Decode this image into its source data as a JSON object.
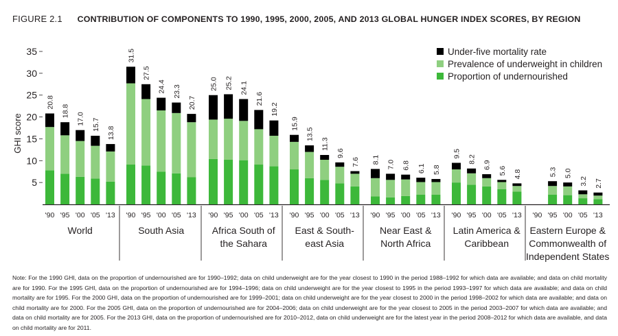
{
  "figure": {
    "label": "FIGURE 2.1",
    "title": "CONTRIBUTION OF COMPONENTS TO 1990, 1995, 2000, 2005, AND 2013 GLOBAL HUNGER INDEX SCORES, BY REGION"
  },
  "note": "Note: For the 1990 GHI, data on the proportion of undernourished are for 1990–1992; data on child underweight are for the year closest to 1990 in the period 1988–1992 for which data are available; and data on child mortality are for 1990. For the 1995 GHI, data on the proportion of undernourished are for 1994–1996; data on child underweight are for the year closest to 1995 in the period 1993–1997 for which data are available; and data on child mortality are for 1995. For the 2000 GHI, data on the proportion of undernourished are for 1999–2001; data on child underweight are for the year closest to 2000 in the period 1998–2002 for which data are available; and data on child mortality are for 2000. For the 2005 GHI, data on the proportion of undernourished are for 2004–2006; data on child underweight are for the year closest to 2005 in the period 2003–2007 for which data are available; and data on child mortality are for 2005. For the 2013 GHI, data on the proportion of undernourished are for 2010–2012, data on child underweight are for the latest year in the period 2008–2012 for which data are available, and data on child mortality are for 2011.",
  "chart_data": {
    "type": "bar",
    "stacked": true,
    "ylabel": "GHI score",
    "ylim": [
      0,
      35
    ],
    "yticks": [
      5,
      10,
      15,
      20,
      25,
      30,
      35
    ],
    "grid": false,
    "legend_position": "top-right",
    "year_labels": [
      "'90",
      "'95",
      "'00",
      "'05",
      "'13"
    ],
    "series": [
      {
        "name": "Under-five mortality rate",
        "color": "#000000"
      },
      {
        "name": "Prevalence of underweight in children",
        "color": "#8fcf80"
      },
      {
        "name": "Proportion of undernourished",
        "color": "#3db83a"
      }
    ],
    "regions": [
      {
        "name": [
          "World"
        ],
        "totals": [
          "20.8",
          "18.8",
          "17.0",
          "15.7",
          "13.8"
        ],
        "undernourished": [
          7.8,
          7.0,
          6.3,
          5.9,
          5.2
        ],
        "underweight": [
          9.9,
          8.8,
          8.2,
          7.5,
          6.9
        ]
      },
      {
        "name": [
          "South Asia"
        ],
        "totals": [
          "31.5",
          "27.5",
          "24.4",
          "23.3",
          "20.7"
        ],
        "undernourished": [
          9.1,
          8.9,
          7.5,
          7.1,
          6.2
        ],
        "underweight": [
          18.6,
          15.2,
          14.0,
          13.8,
          12.6
        ]
      },
      {
        "name": [
          "Africa South of",
          "the Sahara"
        ],
        "totals": [
          "25.0",
          "25.2",
          "24.1",
          "21.6",
          "19.2"
        ],
        "undernourished": [
          10.4,
          10.2,
          10.1,
          9.1,
          8.7
        ],
        "underweight": [
          9.0,
          9.4,
          9.0,
          8.1,
          7.0
        ]
      },
      {
        "name": [
          "East & South-",
          "east Asia"
        ],
        "totals": [
          "15.9",
          "13.5",
          "11.3",
          "9.6",
          "7.6"
        ],
        "undernourished": [
          8.0,
          6.0,
          5.6,
          4.8,
          4.1
        ],
        "underweight": [
          6.3,
          6.0,
          4.6,
          3.8,
          2.9
        ]
      },
      {
        "name": [
          "Near East &",
          "North Africa"
        ],
        "totals": [
          "8.1",
          "7.0",
          "6.8",
          "6.1",
          "5.8"
        ],
        "undernourished": [
          1.8,
          1.6,
          1.9,
          2.2,
          2.2
        ],
        "underweight": [
          4.2,
          4.0,
          3.8,
          2.9,
          2.9
        ]
      },
      {
        "name": [
          "Latin America &",
          "Caribbean"
        ],
        "totals": [
          "9.5",
          "8.2",
          "6.9",
          "5.6",
          "4.8"
        ],
        "undernourished": [
          5.0,
          4.5,
          4.1,
          3.5,
          2.9
        ],
        "underweight": [
          3.0,
          2.6,
          1.9,
          1.6,
          1.3
        ]
      },
      {
        "name": [
          "Eastern Europe &",
          "Commonwealth of",
          "Independent States"
        ],
        "totals": [
          "",
          "5.3",
          "5.0",
          "3.2",
          "2.7"
        ],
        "undernourished": [
          null,
          2.2,
          2.1,
          1.4,
          1.2
        ],
        "underweight": [
          null,
          2.0,
          2.0,
          0.9,
          0.8
        ]
      }
    ]
  }
}
